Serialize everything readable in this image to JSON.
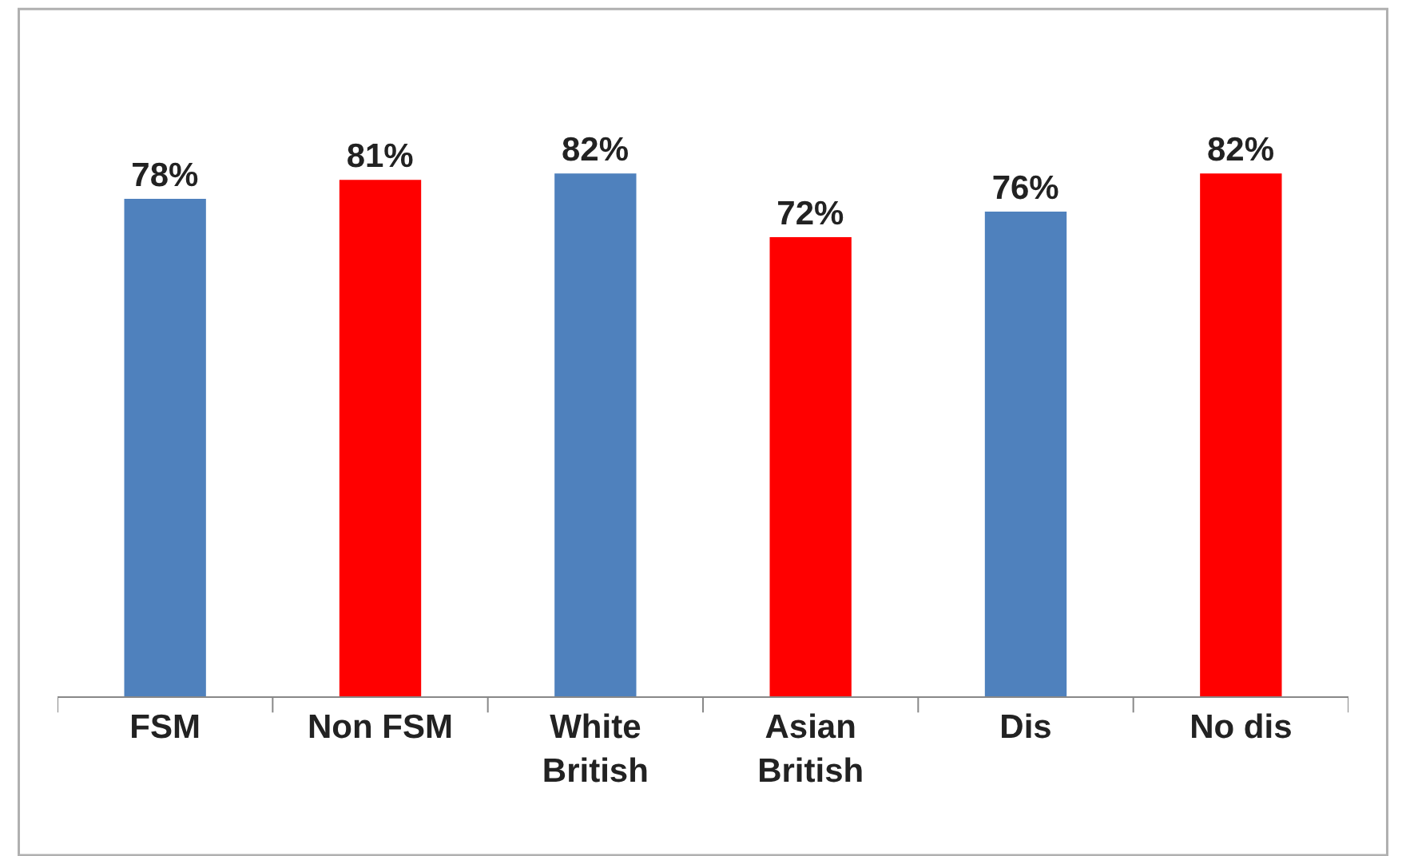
{
  "chart_data": {
    "type": "bar",
    "categories": [
      "FSM",
      "Non FSM",
      "White\nBritish",
      "Asian\nBritish",
      "Dis",
      "No dis"
    ],
    "values": [
      78,
      81,
      82,
      72,
      76,
      82
    ],
    "colors": [
      "#4f81bd",
      "#ff0000",
      "#4f81bd",
      "#ff0000",
      "#4f81bd",
      "#ff0000"
    ],
    "value_labels": [
      "78%",
      "81%",
      "82%",
      "72%",
      "76%",
      "82%"
    ]
  }
}
